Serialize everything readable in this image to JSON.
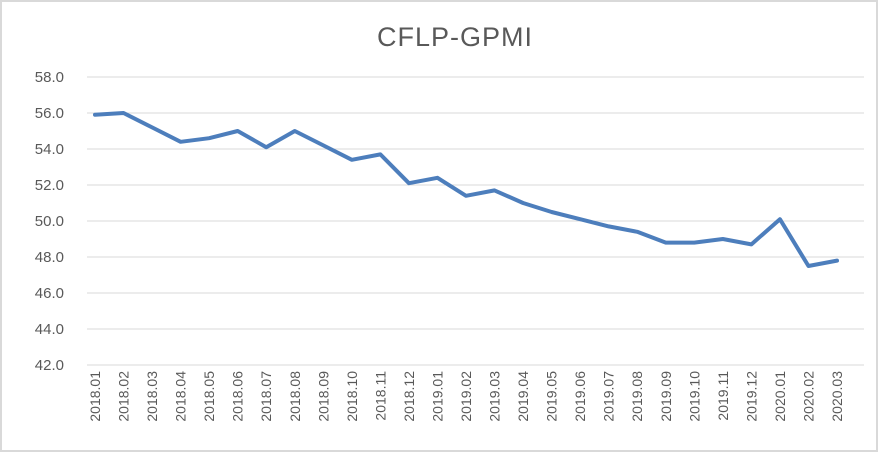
{
  "chart_data": {
    "type": "line",
    "title": "CFLP-GPMI",
    "x": [
      "2018.01",
      "2018.02",
      "2018.03",
      "2018.04",
      "2018.05",
      "2018.06",
      "2018.07",
      "2018.08",
      "2018.09",
      "2018.10",
      "2018.11",
      "2018.12",
      "2019.01",
      "2019.02",
      "2019.03",
      "2019.04",
      "2019.05",
      "2019.06",
      "2019.07",
      "2019.08",
      "2019.09",
      "2019.10",
      "2019.11",
      "2019.12",
      "2020.01",
      "2020.02",
      "2020.03"
    ],
    "series": [
      {
        "name": "CFLP-GPMI",
        "values": [
          55.9,
          56.0,
          55.2,
          54.4,
          54.6,
          55.0,
          54.1,
          55.0,
          54.2,
          53.4,
          53.7,
          52.1,
          52.4,
          51.4,
          51.7,
          51.0,
          50.5,
          50.1,
          49.7,
          49.4,
          48.8,
          48.8,
          49.0,
          48.7,
          50.1,
          47.5,
          47.8
        ]
      }
    ],
    "xlabel": "",
    "ylabel": "",
    "ylim": [
      42.0,
      58.0
    ],
    "ytick_step": 2.0,
    "yticks": [
      "58.0",
      "56.0",
      "54.0",
      "52.0",
      "50.0",
      "48.0",
      "46.0",
      "44.0",
      "42.0"
    ],
    "grid": "horizontal",
    "legend_position": "none",
    "x_label_rotation_degrees": 90
  },
  "colors": {
    "line": "#4d7ebc",
    "gridline": "#d9d9d9",
    "axis_text": "#595959",
    "title_text": "#595959",
    "frame_border": "#d9d9d9",
    "background": "#ffffff"
  }
}
